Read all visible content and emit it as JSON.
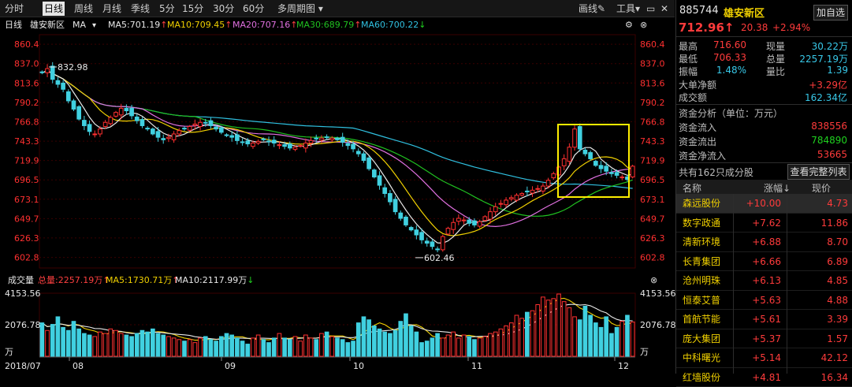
{
  "toolbar": {
    "timeframes": [
      "分时",
      "日线",
      "周线",
      "月线",
      "季线",
      "5分",
      "15分",
      "30分",
      "60分",
      "多周期图"
    ],
    "active": "日线",
    "draw_label": "画线",
    "tools_label": "工具"
  },
  "ma_bar": {
    "period": "日线",
    "name": "雄安新区",
    "ma_label": "MA",
    "items": [
      {
        "text": "MA5:701.19",
        "arrow": "↑",
        "color": "#e8e8e8"
      },
      {
        "text": "MA10:709.45",
        "arrow": "↑",
        "color": "#f0d000"
      },
      {
        "text": "MA20:707.16",
        "arrow": "↑",
        "color": "#e070e0"
      },
      {
        "text": "MA30:689.79",
        "arrow": "↑",
        "color": "#20c020"
      },
      {
        "text": "MA60:700.22",
        "arrow": "↓",
        "color": "#30c0e0"
      }
    ]
  },
  "price_axis": {
    "ticks": [
      "860.4",
      "837.0",
      "813.6",
      "790.2",
      "766.8",
      "743.3",
      "719.9",
      "696.5",
      "673.1",
      "649.7",
      "626.3",
      "602.8"
    ],
    "high_label": "832.98",
    "low_label": "602.46"
  },
  "volume_bar": {
    "title": "成交量",
    "total": "总量:2257.19万",
    "total_arrow": "↑",
    "ma5": "MA5:1730.71万",
    "ma5_arrow": "↑",
    "ma10": "MA10:2117.99万",
    "ma10_arrow": "↓",
    "axis_top": "4153.56",
    "axis_mid": "2076.78",
    "axis_unit": "万"
  },
  "date_axis": [
    "2018/07",
    "08",
    "09",
    "10",
    "11",
    "12"
  ],
  "chart_data": {
    "type": "candlestick",
    "ylim": [
      590,
      872
    ],
    "y_ticks": [
      860.4,
      837.0,
      813.6,
      790.2,
      766.8,
      743.3,
      719.9,
      696.5,
      673.1,
      649.7,
      626.3,
      602.8
    ],
    "annotations": [
      {
        "label": "832.98",
        "value": 832.98
      },
      {
        "label": "602.46",
        "value": 602.46
      }
    ],
    "close": [
      826,
      831,
      818,
      812,
      806,
      792,
      782,
      770,
      762,
      755,
      752,
      758,
      766,
      772,
      778,
      783,
      780,
      774,
      768,
      762,
      758,
      752,
      748,
      745,
      748,
      752,
      756,
      758,
      761,
      764,
      766,
      765,
      762,
      758,
      754,
      750,
      748,
      744,
      742,
      740,
      741,
      743,
      745,
      743,
      741,
      739,
      737,
      735,
      736,
      738,
      741,
      744,
      746,
      747,
      748,
      747,
      745,
      742,
      738,
      734,
      728,
      720,
      710,
      700,
      690,
      680,
      670,
      658,
      650,
      642,
      636,
      630,
      624,
      620,
      616,
      612,
      628,
      638,
      645,
      650,
      648,
      644,
      642,
      646,
      652,
      658,
      664,
      668,
      672,
      675,
      678,
      680,
      682,
      684,
      686,
      689,
      696,
      704,
      712,
      722,
      736,
      758,
      734,
      728,
      722,
      714,
      710,
      707,
      704,
      702,
      700,
      697,
      713
    ],
    "volume_max": 4153.56,
    "volume_ticks": [
      4153.56,
      2076.78
    ],
    "volume": [
      2200,
      1700,
      2100,
      2600,
      1900,
      1700,
      2300,
      1800,
      1500,
      1400,
      1300,
      1600,
      1500,
      1800,
      1700,
      1500,
      1400,
      1300,
      1500,
      1700,
      1600,
      1800,
      1500,
      1400,
      1300,
      1200,
      1100,
      1000,
      1100,
      900,
      1200,
      1300,
      1100,
      1000,
      1300,
      1500,
      1400,
      1200,
      1000,
      800,
      1200,
      1400,
      1100,
      900,
      1200,
      1500,
      1200,
      1100,
      1300,
      1000,
      1400,
      1200,
      1100,
      1500,
      1600,
      1300,
      1200,
      1100,
      900,
      1000,
      2200,
      2600,
      2400,
      2000,
      1800,
      1600,
      1500,
      1700,
      2300,
      2800,
      2000,
      1600,
      900,
      1000,
      1200,
      1500,
      1200,
      1400,
      1600,
      1200,
      1400,
      1300,
      1100,
      1200,
      1300,
      1500,
      1600,
      1800,
      2000,
      2200,
      2700,
      2500,
      2900,
      3000,
      3400,
      3900,
      3700,
      3800,
      4100,
      3600,
      3200,
      2600,
      2400,
      3300,
      2700,
      2200,
      1900,
      2600,
      1500,
      1900,
      2300,
      2700,
      2257
    ]
  },
  "panel": {
    "code": "885744",
    "name": "雄安新区",
    "add_btn": "加自选",
    "price": "712.96",
    "price_arrow": "↑",
    "change": "20.38",
    "pct": "+2.94%",
    "stats": [
      {
        "l1": "最高",
        "v1": "716.60",
        "c1": "red",
        "l2": "现量",
        "v2": "30.22万",
        "c2": "cyan"
      },
      {
        "l1": "最低",
        "v1": "706.33",
        "c1": "red",
        "l2": "总量",
        "v2": "2257.19万",
        "c2": "cyan"
      },
      {
        "l1": "振幅",
        "v1": "1.48%",
        "c1": "cyan",
        "l2": "量比",
        "v2": "1.39",
        "c2": "cyan"
      }
    ],
    "big_order_label": "大单净额",
    "big_order_value": "+3.29亿",
    "turnover_label": "成交额",
    "turnover_value": "162.34亿",
    "fund_title": "资金分析（单位：万元）",
    "fund_rows": [
      {
        "label": "资金流入",
        "value": "838556",
        "color": "red"
      },
      {
        "label": "资金流出",
        "value": "784890",
        "color": "green"
      },
      {
        "label": "资金净流入",
        "value": "53665",
        "color": "red"
      }
    ],
    "components_label": "共有162只成分股",
    "view_list_btn": "查看完整列表",
    "table_headers": [
      "名称",
      "涨幅↓",
      "现价"
    ],
    "stocks": [
      {
        "name": "森远股份",
        "chg": "+10.00",
        "price": "4.73"
      },
      {
        "name": "数字政通",
        "chg": "+7.62",
        "price": "11.86"
      },
      {
        "name": "清新环境",
        "chg": "+6.88",
        "price": "8.70"
      },
      {
        "name": "长青集团",
        "chg": "+6.66",
        "price": "6.89"
      },
      {
        "name": "沧州明珠",
        "chg": "+6.13",
        "price": "4.85"
      },
      {
        "name": "恒泰艾普",
        "chg": "+5.63",
        "price": "4.88"
      },
      {
        "name": "首航节能",
        "chg": "+5.61",
        "price": "3.39"
      },
      {
        "name": "庞大集团",
        "chg": "+5.37",
        "price": "1.57"
      },
      {
        "name": "中科曙光",
        "chg": "+5.14",
        "price": "42.12"
      },
      {
        "name": "红墙股份",
        "chg": "+4.81",
        "price": "16.34"
      }
    ]
  }
}
